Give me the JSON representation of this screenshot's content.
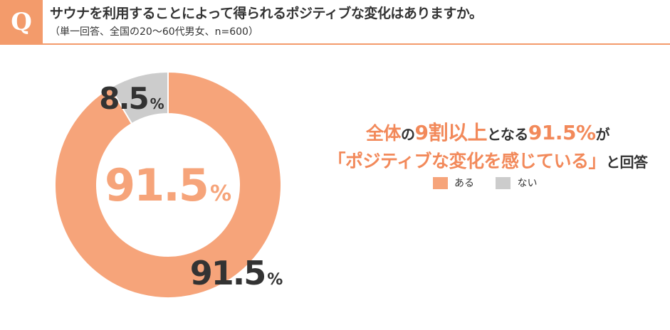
{
  "header": {
    "badge": "Q",
    "title": "サウナを利用することによって得られるポジティブな変化はありますか。",
    "subtitle": "（単一回答、全国の20〜60代男女、n=600）"
  },
  "chart_data": {
    "type": "pie",
    "categories": [
      "ある",
      "ない"
    ],
    "values": [
      91.5,
      8.5
    ],
    "unit": "%",
    "colors": [
      "#f6a47a",
      "#cccccc"
    ],
    "center_label": "91.5",
    "data_labels": [
      "91.5",
      "8.5"
    ],
    "legend_placement": "right"
  },
  "headline": {
    "part1": "全体",
    "part2": "の",
    "part3": "9割以上",
    "part4": "となる",
    "part5": "91.5%",
    "part6": "が",
    "part7": "「ポジティブな変化を感じている」",
    "part8": "と回答"
  },
  "legend": {
    "items": [
      {
        "label": "ある",
        "color": "#f6a47a"
      },
      {
        "label": "ない",
        "color": "#cccccc"
      }
    ]
  }
}
